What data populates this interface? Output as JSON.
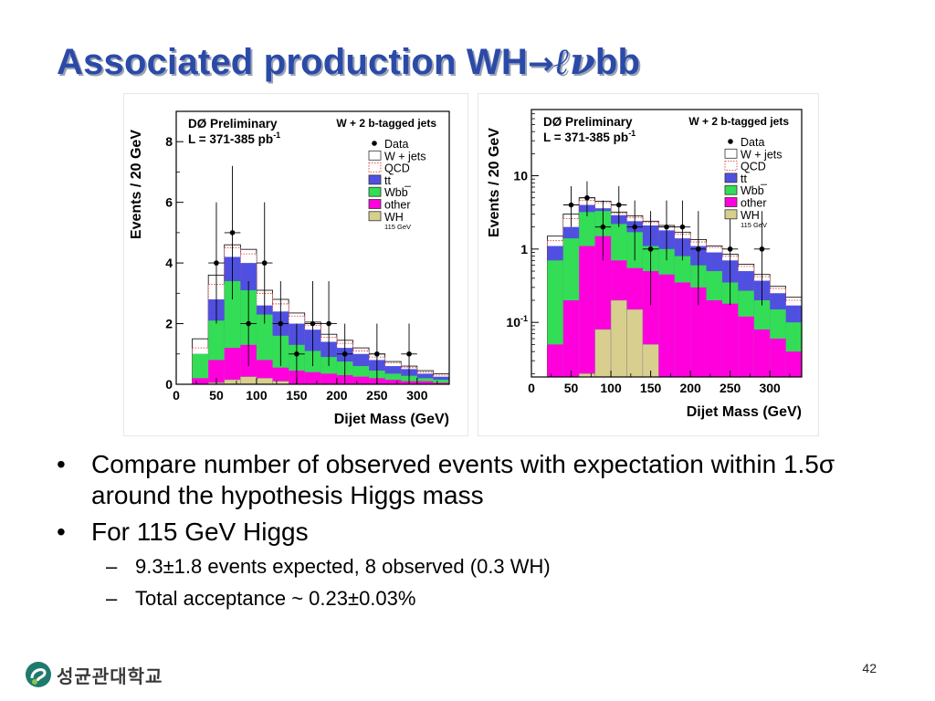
{
  "slide": {
    "title_main": "Associated production WH",
    "title_arrow": "→",
    "title_ell": "ℓ",
    "title_nu": "ν",
    "title_tail": "bb",
    "bullets": [
      {
        "text": "Compare number of observed events with expectation within 1.5σ around the hypothesis Higgs mass"
      },
      {
        "text": "For 115 GeV Higgs"
      }
    ],
    "sub_bullets": [
      {
        "text": "9.3±1.8 events expected, 8 observed (0.3 WH)"
      },
      {
        "text": "Total acceptance ~ 0.23±0.03%"
      }
    ],
    "bullet_glyph": "•",
    "dash_glyph": "–",
    "page_number": "42",
    "logo_text": "성균관대학교"
  },
  "colors": {
    "title": "#2b4aa8",
    "wjets": "#ffffff",
    "qcd": "#ffffff",
    "ttbar": "#5050e0",
    "wbb": "#33dd55",
    "other": "#ff00dd",
    "wh": "#d8cf8f"
  },
  "chart_data": [
    {
      "type": "bar",
      "scale": "linear",
      "header": "DØ Preliminary",
      "lumi": "L = 371-385 pb",
      "lumi_exp": "-1",
      "selection": "W + 2 b-tagged jets",
      "ylabel": "Events / 20 GeV",
      "xlabel": "Dijet Mass (GeV)",
      "ylim": [
        0,
        9
      ],
      "xlim": [
        0,
        340
      ],
      "xticks": [
        0,
        50,
        100,
        150,
        200,
        250,
        300
      ],
      "yticks": [
        0,
        2,
        4,
        6,
        8
      ],
      "legend": [
        "Data",
        "W + jets",
        "QCD",
        "tt",
        "Wbb",
        "other",
        "WH"
      ],
      "wh_note": "115 GeV",
      "bins": [
        20,
        40,
        60,
        80,
        100,
        120,
        140,
        160,
        180,
        200,
        220,
        240,
        260,
        280,
        300,
        320,
        340
      ],
      "stack": {
        "wh": [
          0,
          0.05,
          0.15,
          0.25,
          0.2,
          0.1,
          0,
          0,
          0,
          0,
          0,
          0,
          0,
          0,
          0,
          0
        ],
        "other": [
          0.2,
          0.8,
          1.2,
          1.3,
          0.8,
          0.55,
          0.45,
          0.4,
          0.35,
          0.3,
          0.25,
          0.2,
          0.15,
          0.1,
          0.1,
          0.05
        ],
        "wbb": [
          1.0,
          2.1,
          3.4,
          3.1,
          2.3,
          1.6,
          1.3,
          1.1,
          0.9,
          0.75,
          0.6,
          0.45,
          0.35,
          0.28,
          0.2,
          0.15
        ],
        "ttbar": [
          1.0,
          2.8,
          4.2,
          4.0,
          2.6,
          2.4,
          2.0,
          1.8,
          1.4,
          1.2,
          1.0,
          0.8,
          0.6,
          0.5,
          0.35,
          0.25
        ],
        "qcd": [
          1.2,
          3.3,
          4.5,
          4.3,
          3.0,
          2.65,
          2.25,
          1.95,
          1.55,
          1.35,
          1.1,
          0.9,
          0.7,
          0.55,
          0.4,
          0.3
        ],
        "wjets": [
          1.5,
          3.6,
          4.6,
          4.45,
          3.1,
          2.8,
          2.35,
          2.05,
          1.65,
          1.45,
          1.2,
          1.0,
          0.75,
          0.6,
          0.45,
          0.35
        ]
      },
      "data_points": [
        {
          "x": 50,
          "y": 4,
          "yerr": 2.0
        },
        {
          "x": 70,
          "y": 5,
          "yerr": 2.2
        },
        {
          "x": 90,
          "y": 2,
          "yerr": 1.4
        },
        {
          "x": 110,
          "y": 4,
          "yerr": 2.0
        },
        {
          "x": 130,
          "y": 2,
          "yerr": 1.4
        },
        {
          "x": 150,
          "y": 1,
          "yerr": 1.0
        },
        {
          "x": 170,
          "y": 2,
          "yerr": 1.4
        },
        {
          "x": 190,
          "y": 2,
          "yerr": 1.4
        },
        {
          "x": 210,
          "y": 1,
          "yerr": 1.0
        },
        {
          "x": 250,
          "y": 1,
          "yerr": 1.0
        },
        {
          "x": 290,
          "y": 1,
          "yerr": 1.0
        }
      ]
    },
    {
      "type": "bar",
      "scale": "log",
      "header": "DØ Preliminary",
      "lumi": "L = 371-385 pb",
      "lumi_exp": "-1",
      "selection": "W + 2 b-tagged jets",
      "ylabel": "Events / 20 GeV",
      "xlabel": "Dijet Mass (GeV)",
      "ylim": [
        0.018,
        80
      ],
      "xlim": [
        0,
        340
      ],
      "xticks": [
        0,
        50,
        100,
        150,
        200,
        250,
        300
      ],
      "ytick_labels": [
        {
          "value": 0.1,
          "base": "10",
          "exp": "-1"
        },
        {
          "value": 1,
          "base": "1",
          "exp": ""
        },
        {
          "value": 10,
          "base": "10",
          "exp": ""
        }
      ],
      "legend": [
        "Data",
        "W + jets",
        "QCD",
        "tt",
        "Wbb",
        "other",
        "WH"
      ],
      "wh_note": "115 GeV",
      "bins": [
        20,
        40,
        60,
        80,
        100,
        120,
        140,
        160,
        180,
        200,
        220,
        240,
        260,
        280,
        300,
        320,
        340
      ],
      "stack": {
        "wh": [
          0,
          0,
          0.02,
          0.08,
          0.2,
          0.15,
          0.05,
          0,
          0,
          0,
          0,
          0,
          0,
          0,
          0,
          0
        ],
        "other": [
          0.05,
          0.2,
          1.1,
          1.5,
          0.7,
          0.55,
          0.5,
          0.45,
          0.35,
          0.3,
          0.2,
          0.18,
          0.12,
          0.08,
          0.06,
          0.04
        ],
        "wbb": [
          0.7,
          1.4,
          3.2,
          3.3,
          2.2,
          1.7,
          1.1,
          1.0,
          0.8,
          0.6,
          0.5,
          0.35,
          0.27,
          0.2,
          0.15,
          0.1
        ],
        "ttbar": [
          1.1,
          2.0,
          4.0,
          3.6,
          2.9,
          2.4,
          2.1,
          1.8,
          1.4,
          1.1,
          0.9,
          0.7,
          0.5,
          0.37,
          0.25,
          0.17
        ],
        "qcd": [
          1.3,
          2.6,
          4.6,
          4.3,
          3.1,
          2.7,
          2.3,
          2.0,
          1.6,
          1.25,
          1.05,
          0.8,
          0.58,
          0.42,
          0.29,
          0.2
        ],
        "wjets": [
          1.5,
          3.0,
          5.0,
          4.5,
          3.2,
          2.85,
          2.4,
          2.1,
          1.7,
          1.35,
          1.1,
          0.85,
          0.62,
          0.45,
          0.31,
          0.22
        ]
      },
      "data_points": [
        {
          "x": 50,
          "y": 4,
          "yerr_lo": 2.0,
          "yerr_hi": 3.2
        },
        {
          "x": 70,
          "y": 5,
          "yerr_lo": 2.2,
          "yerr_hi": 3.4
        },
        {
          "x": 90,
          "y": 2,
          "yerr_lo": 1.3,
          "yerr_hi": 2.6
        },
        {
          "x": 110,
          "y": 4,
          "yerr_lo": 2.0,
          "yerr_hi": 3.2
        },
        {
          "x": 130,
          "y": 2,
          "yerr_lo": 1.3,
          "yerr_hi": 2.6
        },
        {
          "x": 150,
          "y": 1,
          "yerr_lo": 0.83,
          "yerr_hi": 2.3
        },
        {
          "x": 170,
          "y": 2,
          "yerr_lo": 1.3,
          "yerr_hi": 2.6
        },
        {
          "x": 190,
          "y": 2,
          "yerr_lo": 1.3,
          "yerr_hi": 2.6
        },
        {
          "x": 210,
          "y": 1,
          "yerr_lo": 0.83,
          "yerr_hi": 2.3
        },
        {
          "x": 250,
          "y": 1,
          "yerr_lo": 0.83,
          "yerr_hi": 2.3
        },
        {
          "x": 290,
          "y": 1,
          "yerr_lo": 0.83,
          "yerr_hi": 2.3
        }
      ]
    }
  ]
}
